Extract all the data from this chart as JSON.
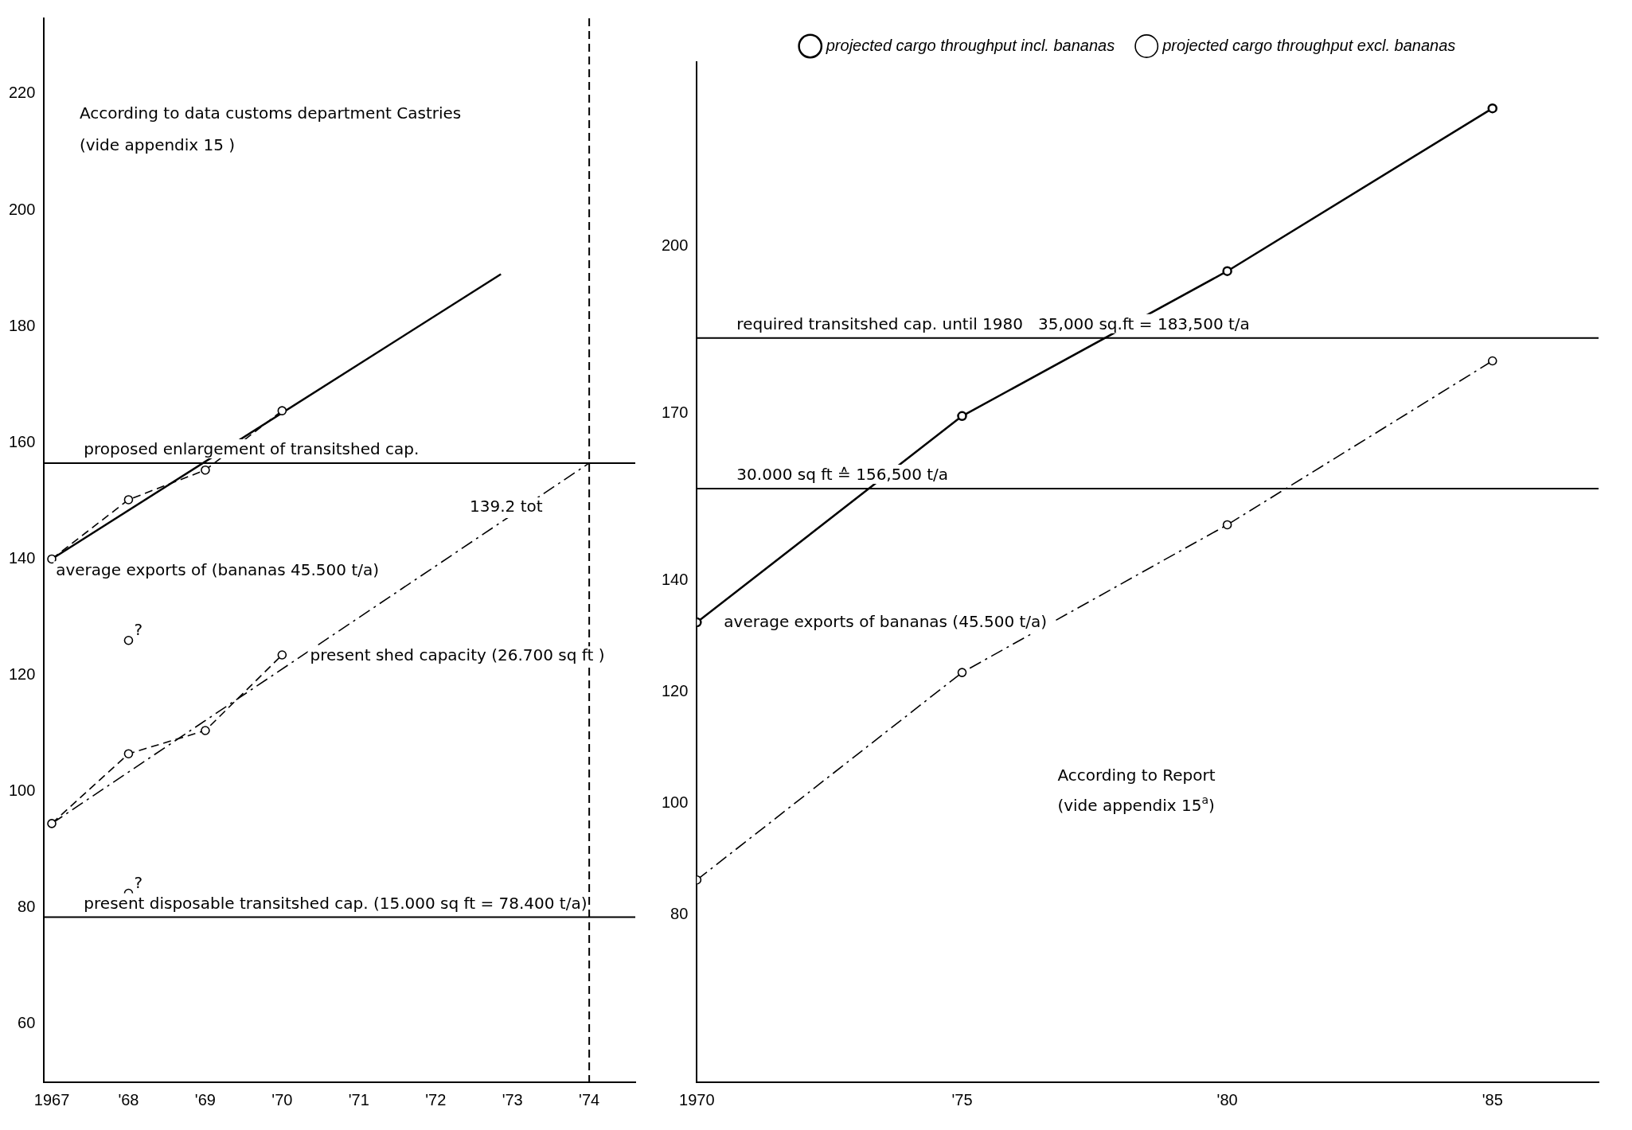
{
  "chart_data": [
    {
      "type": "line",
      "xlim": [
        1966.9,
        1974.6
      ],
      "ylim": [
        50,
        233
      ],
      "xticks": [
        {
          "value": 1967,
          "label": "1967"
        },
        {
          "value": 1968,
          "label": "'68"
        },
        {
          "value": 1969,
          "label": "'69"
        },
        {
          "value": 1970,
          "label": "'70"
        },
        {
          "value": 1971,
          "label": "'71"
        },
        {
          "value": 1972,
          "label": "'72"
        },
        {
          "value": 1973,
          "label": "'73"
        },
        {
          "value": 1974,
          "label": "'74"
        }
      ],
      "yticks": [
        60,
        80,
        100,
        120,
        140,
        160,
        180,
        200,
        220
      ],
      "grid": false,
      "legend": false,
      "series": [
        {
          "type": "line",
          "color": "#000000",
          "x": [
            1967,
            1968,
            1969,
            1970
          ],
          "values": [
            140,
            150.2,
            155.3,
            165.5
          ],
          "marker": "circle",
          "line_style": "dashed"
        },
        {
          "type": "line",
          "color": "#000000",
          "x": [
            1967,
            1972.85
          ],
          "values": [
            140,
            189
          ],
          "marker": "none",
          "line_style": "solid"
        },
        {
          "type": "line",
          "color": "#000000",
          "x": [
            1967,
            1968,
            1969,
            1970
          ],
          "values": [
            94.5,
            106.5,
            110.5,
            123.5
          ],
          "marker": "circle",
          "line_style": "dashed"
        },
        {
          "type": "line",
          "color": "#000000",
          "x": [
            1967,
            1974
          ],
          "values": [
            94.5,
            156.5
          ],
          "marker": "none",
          "line_style": "dashdot"
        },
        {
          "type": "scatter",
          "color": "#000000",
          "x": [
            1968,
            1968
          ],
          "values": [
            126,
            82.5
          ],
          "marker": "circle",
          "value_labels": [
            "?",
            "?"
          ]
        }
      ],
      "ref_lines": [
        {
          "axis": "y",
          "value": 156.5,
          "label": "proposed enlargement of transitshed cap."
        },
        {
          "axis": "y",
          "value": 78.4,
          "label": "present disposable transitshed cap. (15.000 sq ft = 78.400 t/a)"
        },
        {
          "axis": "x",
          "value": 1974,
          "line_style": "dashed"
        }
      ],
      "annotations": [
        "According to data customs department Castries",
        "(vide appendix 15 )",
        "average exports of (bananas 45.500 t/a)",
        "139.2 tot",
        "present shed capacity (26.700 sq ft )"
      ]
    },
    {
      "type": "line",
      "xlim": [
        1970,
        1987
      ],
      "ylim": [
        50,
        233
      ],
      "xticks": [
        {
          "value": 1970,
          "label": "1970"
        },
        {
          "value": 1975,
          "label": "'75"
        },
        {
          "value": 1980,
          "label": "'80"
        },
        {
          "value": 1985,
          "label": "'85"
        }
      ],
      "yticks": [
        80,
        100,
        120,
        140,
        170,
        200
      ],
      "grid": false,
      "legend": "top",
      "series": [
        {
          "name": "projected cargo throughput incl. bananas",
          "type": "line",
          "color": "#000000",
          "x": [
            1970,
            1975,
            1980,
            1985
          ],
          "values": [
            132.5,
            169.5,
            195.5,
            224.7
          ],
          "marker": "circle",
          "line_style": "solid"
        },
        {
          "name": "projected cargo throughput excl. bananas",
          "type": "line",
          "color": "#000000",
          "x": [
            1970,
            1975,
            1980,
            1985
          ],
          "values": [
            86.3,
            123.5,
            150,
            179.4
          ],
          "marker": "circle",
          "line_style": "dashdot"
        }
      ],
      "ref_lines": [
        {
          "axis": "y",
          "value": 156.5,
          "label": "30.000 sq ft ≙ 156,500 t/a"
        },
        {
          "axis": "y",
          "value": 183.5,
          "label": "required transitshed cap. until 1980   35,000 sq.ft = 183,500 t/a"
        }
      ],
      "annotations": [
        "According to Report",
        "(vide appendix 15$^{a}$)",
        "average exports of bananas (45.500 t/a)"
      ]
    }
  ]
}
